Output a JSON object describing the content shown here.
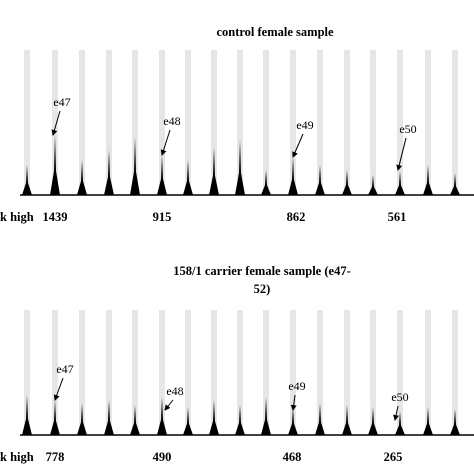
{
  "panels": [
    {
      "title_lines": [
        "control female sample"
      ],
      "row_label": "k high",
      "exon_labels": [
        "e47",
        "e48",
        "e49",
        "e50"
      ],
      "peak_heights": [
        1439,
        915,
        862,
        561
      ]
    },
    {
      "title_lines": [
        "158/1 carrier female sample (e47-",
        "52)"
      ],
      "row_label": "k high",
      "exon_labels": [
        "e47",
        "e48",
        "e49",
        "e50"
      ],
      "peak_heights": [
        778,
        490,
        468,
        265
      ]
    }
  ]
}
